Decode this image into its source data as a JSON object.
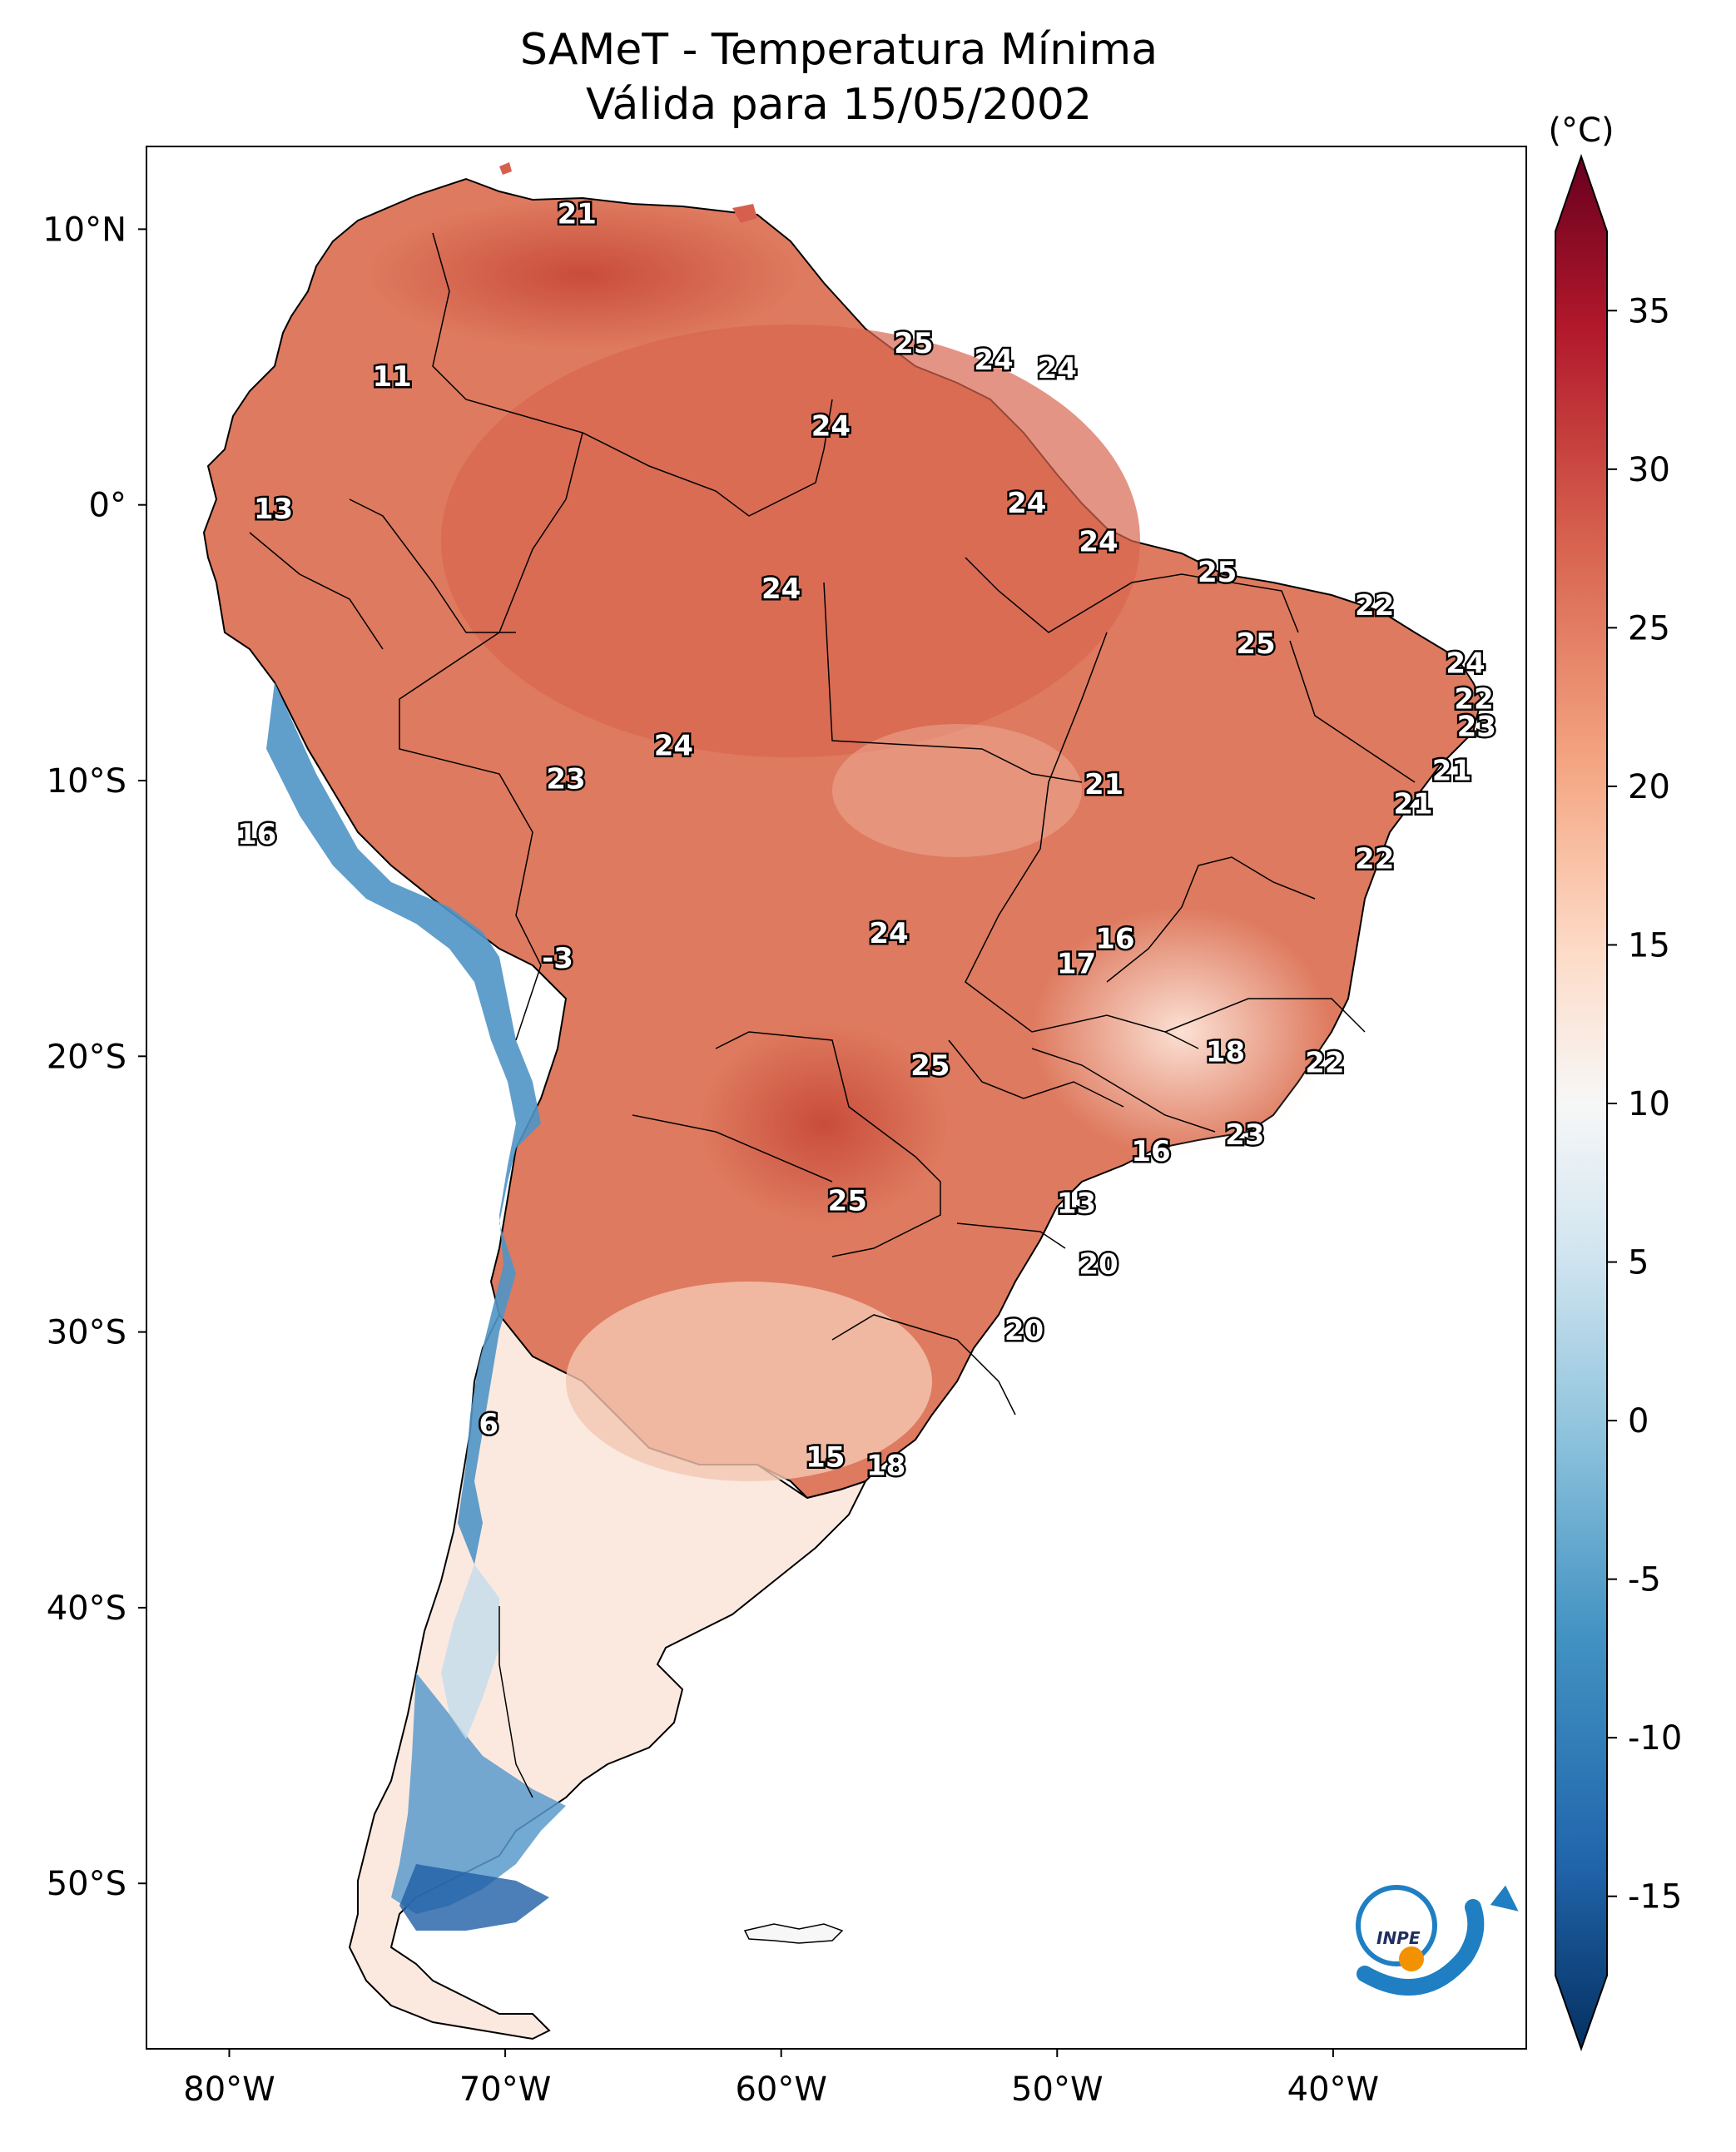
{
  "title": {
    "line1": "SAMeT - Temperatura Mínima",
    "line2": "Válida para 15/05/2002"
  },
  "map": {
    "lon_range": [
      -83,
      -33
    ],
    "lat_range": [
      -56,
      13
    ],
    "lon_ticks": [
      {
        "value": -80,
        "label": "80°W"
      },
      {
        "value": -70,
        "label": "70°W"
      },
      {
        "value": -60,
        "label": "60°W"
      },
      {
        "value": -50,
        "label": "50°W"
      },
      {
        "value": -40,
        "label": "40°W"
      }
    ],
    "lat_ticks": [
      {
        "value": 10,
        "label": "10°N"
      },
      {
        "value": 0,
        "label": "0°"
      },
      {
        "value": -10,
        "label": "10°S"
      },
      {
        "value": -20,
        "label": "20°S"
      },
      {
        "value": -30,
        "label": "30°S"
      },
      {
        "value": -40,
        "label": "40°S"
      },
      {
        "value": -50,
        "label": "50°S"
      }
    ],
    "city_values": [
      {
        "lon": -67.4,
        "lat": 10.5,
        "value": "21"
      },
      {
        "lon": -74.1,
        "lat": 4.6,
        "value": "11"
      },
      {
        "lon": -78.4,
        "lat": -0.2,
        "value": "13"
      },
      {
        "lon": -55.2,
        "lat": 5.8,
        "value": "25"
      },
      {
        "lon": -52.3,
        "lat": 5.2,
        "value": "24"
      },
      {
        "lon": -50.0,
        "lat": 4.9,
        "value": "24"
      },
      {
        "lon": -58.2,
        "lat": 2.8,
        "value": "24"
      },
      {
        "lon": -51.1,
        "lat": 0.0,
        "value": "24"
      },
      {
        "lon": -60.0,
        "lat": -3.1,
        "value": "24"
      },
      {
        "lon": -48.5,
        "lat": -1.4,
        "value": "24"
      },
      {
        "lon": -44.2,
        "lat": -2.5,
        "value": "25"
      },
      {
        "lon": -42.8,
        "lat": -5.1,
        "value": "25"
      },
      {
        "lon": -38.5,
        "lat": -3.7,
        "value": "22"
      },
      {
        "lon": -35.2,
        "lat": -5.8,
        "value": "24"
      },
      {
        "lon": -34.9,
        "lat": -7.1,
        "value": "22"
      },
      {
        "lon": -34.8,
        "lat": -8.1,
        "value": "23"
      },
      {
        "lon": -35.7,
        "lat": -9.7,
        "value": "21"
      },
      {
        "lon": -37.1,
        "lat": -10.9,
        "value": "21"
      },
      {
        "lon": -38.5,
        "lat": -12.9,
        "value": "22"
      },
      {
        "lon": -48.3,
        "lat": -10.2,
        "value": "21"
      },
      {
        "lon": -63.9,
        "lat": -8.8,
        "value": "24"
      },
      {
        "lon": -67.8,
        "lat": -10.0,
        "value": "23"
      },
      {
        "lon": -79.0,
        "lat": -12.0,
        "value": "16"
      },
      {
        "lon": -68.1,
        "lat": -16.5,
        "value": "-3"
      },
      {
        "lon": -56.1,
        "lat": -15.6,
        "value": "24"
      },
      {
        "lon": -47.9,
        "lat": -15.8,
        "value": "16"
      },
      {
        "lon": -49.3,
        "lat": -16.7,
        "value": "17"
      },
      {
        "lon": -43.9,
        "lat": -19.9,
        "value": "18"
      },
      {
        "lon": -40.3,
        "lat": -20.3,
        "value": "22"
      },
      {
        "lon": -54.6,
        "lat": -20.4,
        "value": "25"
      },
      {
        "lon": -43.2,
        "lat": -22.9,
        "value": "23"
      },
      {
        "lon": -46.6,
        "lat": -23.5,
        "value": "16"
      },
      {
        "lon": -57.6,
        "lat": -25.3,
        "value": "25"
      },
      {
        "lon": -49.3,
        "lat": -25.4,
        "value": "13"
      },
      {
        "lon": -48.5,
        "lat": -27.6,
        "value": "20"
      },
      {
        "lon": -51.2,
        "lat": -30.0,
        "value": "20"
      },
      {
        "lon": -70.6,
        "lat": -33.4,
        "value": "6"
      },
      {
        "lon": -58.4,
        "lat": -34.6,
        "value": "15"
      },
      {
        "lon": -56.2,
        "lat": -34.9,
        "value": "18"
      }
    ]
  },
  "colorbar": {
    "unit": "(°C)",
    "min": -17.5,
    "max": 37.5,
    "ticks": [
      {
        "value": 35,
        "label": "35"
      },
      {
        "value": 30,
        "label": "30"
      },
      {
        "value": 25,
        "label": "25"
      },
      {
        "value": 20,
        "label": "20"
      },
      {
        "value": 15,
        "label": "15"
      },
      {
        "value": 10,
        "label": "10"
      },
      {
        "value": 5,
        "label": "5"
      },
      {
        "value": 0,
        "label": "0"
      },
      {
        "value": -5,
        "label": "-5"
      },
      {
        "value": -10,
        "label": "-10"
      },
      {
        "value": -15,
        "label": "-15"
      }
    ],
    "colors": [
      "#053061",
      "#2166ac",
      "#4393c3",
      "#92c5de",
      "#d1e5f0",
      "#f7f7f7",
      "#fddbc7",
      "#f4a582",
      "#d6604d",
      "#b2182b",
      "#67001f"
    ]
  },
  "logo": {
    "text": "INPE",
    "colors": {
      "blue": "#1f7fc2",
      "orange": "#f39200"
    }
  }
}
